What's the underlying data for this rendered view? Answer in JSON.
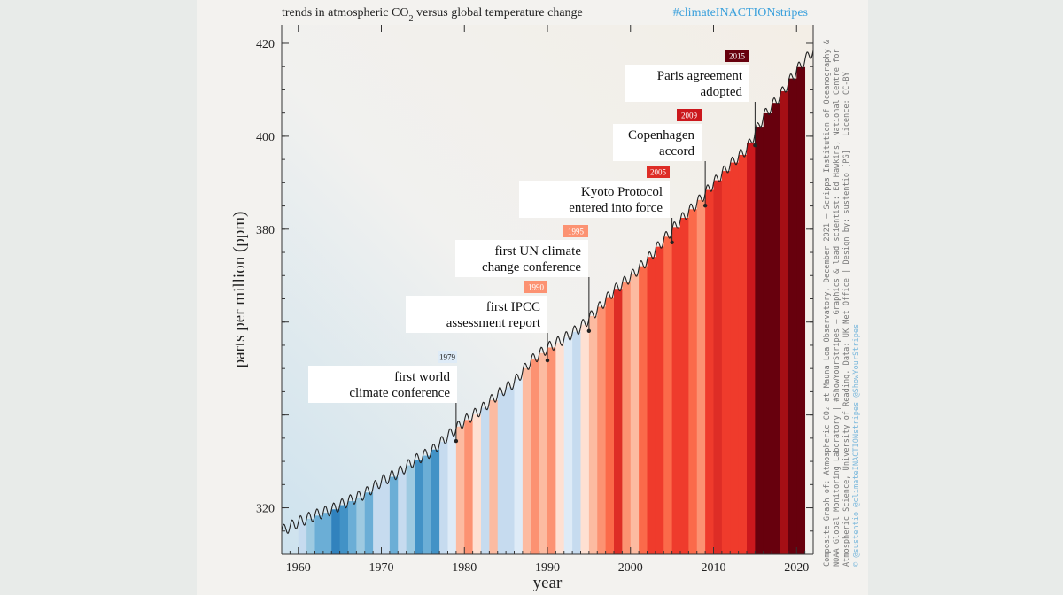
{
  "header": {
    "title_prefix": "trends in atmospheric CO",
    "title_sub": "2",
    "title_suffix": " versus global temperature change",
    "hashtag": "#climateINACTIONstripes"
  },
  "colors": {
    "panel_bg": "#f3f2ef",
    "page_bg": "#e8ebe9",
    "hashtag": "#3aa0dc",
    "curve": "#222222",
    "annotation_box": "#ffffff"
  },
  "credits": {
    "line1": "Composite Graph of: Atmospheric CO₂ at Mauna Loa Observatory, December 2021 – Scripps Institution of Oceanography &",
    "line2": "NOAA Global Monitoring Laboratory | #ShowYourStripes – Graphics & lead scientist: Ed Hawkins, National Centre for",
    "line3": "Atmospheric Science, University of Reading. Data: UK Met Office | Design by: sustentio [PG] | Licence: CC-BY",
    "line4": "© @sustentio @climateINACTIONstripes @ShowYourStripes"
  },
  "chart_data": {
    "type": "line",
    "title": "trends in atmospheric CO₂ versus global temperature change",
    "xlabel": "year",
    "ylabel": "parts per million (ppm)",
    "xlim": [
      1958,
      2022
    ],
    "ylim": [
      310,
      424
    ],
    "x_ticks": [
      1960,
      1970,
      1980,
      1990,
      2000,
      2010,
      2020
    ],
    "y_ticks": [
      320,
      400,
      420
    ],
    "y_tick_labels": [
      "320",
      "380",
      "400",
      "420"
    ],
    "y_tick_values": [
      320,
      380,
      400,
      420
    ],
    "extra_minor_y_ticks": [
      340,
      360
    ],
    "series": [
      {
        "x": [
          1958,
          1960,
          1962,
          1964,
          1966,
          1968,
          1970,
          1972,
          1974,
          1976,
          1978,
          1980,
          1982,
          1984,
          1986,
          1988,
          1990,
          1992,
          1994,
          1996,
          1998,
          2000,
          2002,
          2004,
          2006,
          2008,
          2010,
          2012,
          2014,
          2016,
          2018,
          2020,
          2022
        ],
        "values": [
          315.0,
          316.9,
          318.4,
          319.6,
          321.4,
          323.0,
          325.7,
          327.5,
          330.2,
          332.1,
          335.4,
          338.7,
          341.1,
          344.4,
          347.0,
          351.6,
          354.4,
          356.4,
          358.9,
          362.6,
          366.8,
          369.7,
          373.3,
          377.7,
          381.9,
          385.6,
          389.9,
          393.9,
          397.2,
          404.2,
          408.7,
          414.2,
          418.5
        ]
      }
    ],
    "stripes": {
      "years": [
        1960,
        1961,
        1962,
        1963,
        1964,
        1965,
        1966,
        1967,
        1968,
        1969,
        1970,
        1971,
        1972,
        1973,
        1974,
        1975,
        1976,
        1977,
        1978,
        1979,
        1980,
        1981,
        1982,
        1983,
        1984,
        1985,
        1986,
        1987,
        1988,
        1989,
        1990,
        1991,
        1992,
        1993,
        1994,
        1995,
        1996,
        1997,
        1998,
        1999,
        2000,
        2001,
        2002,
        2003,
        2004,
        2005,
        2006,
        2007,
        2008,
        2009,
        2010,
        2011,
        2012,
        2013,
        2014,
        2015,
        2016,
        2017,
        2018,
        2019,
        2020
      ],
      "colors": [
        "#c6dbef",
        "#9ecae1",
        "#6baed6",
        "#6baed6",
        "#3182bd",
        "#4292c6",
        "#6baed6",
        "#9ecae1",
        "#6baed6",
        "#c6dbef",
        "#c6dbef",
        "#6baed6",
        "#c6dbef",
        "#9ecae1",
        "#4292c6",
        "#6baed6",
        "#4292c6",
        "#c6dbef",
        "#deebf7",
        "#fcbba1",
        "#fc9272",
        "#fee0d2",
        "#c6dbef",
        "#fcbba1",
        "#c6dbef",
        "#c6dbef",
        "#deebf7",
        "#fcbba1",
        "#fc9272",
        "#fcbba1",
        "#fc9272",
        "#fee0d2",
        "#deebf7",
        "#c6dbef",
        "#fee0d2",
        "#fcbba1",
        "#fc9272",
        "#fb6a4a",
        "#de2d26",
        "#fc9272",
        "#fcbba1",
        "#fb6a4a",
        "#ef3b2c",
        "#ef3b2c",
        "#fb6a4a",
        "#ef3b2c",
        "#ef3b2c",
        "#fb6a4a",
        "#fc9272",
        "#ef3b2c",
        "#de2d26",
        "#ef3b2c",
        "#ef3b2c",
        "#ef3b2c",
        "#cb181d",
        "#67000d",
        "#67000d",
        "#67000d",
        "#a50f15",
        "#67000d",
        "#67000d"
      ]
    },
    "annotations": [
      {
        "year": "1979",
        "x": 1979,
        "line1": "first world",
        "line2": "climate conference",
        "tag_color": "#deebf7",
        "tag_text_color": "#222222"
      },
      {
        "year": "1990",
        "x": 1990,
        "line1": "first IPCC",
        "line2": "assessment report",
        "tag_color": "#fc9272",
        "tag_text_color": "#ffffff"
      },
      {
        "year": "1995",
        "x": 1995,
        "line1": "first UN climate",
        "line2": "change conference",
        "tag_color": "#fc9272",
        "tag_text_color": "#ffffff"
      },
      {
        "year": "2005",
        "x": 2005,
        "line1": "Kyoto Protocol",
        "line2": "entered into force",
        "tag_color": "#de2d26",
        "tag_text_color": "#ffffff"
      },
      {
        "year": "2009",
        "x": 2009,
        "line1": "Copenhagen",
        "line2": "accord",
        "tag_color": "#cb181d",
        "tag_text_color": "#ffffff"
      },
      {
        "year": "2015",
        "x": 2015,
        "line1": "Paris agreement",
        "line2": "adopted",
        "tag_color": "#67000d",
        "tag_text_color": "#ffffff"
      }
    ]
  }
}
